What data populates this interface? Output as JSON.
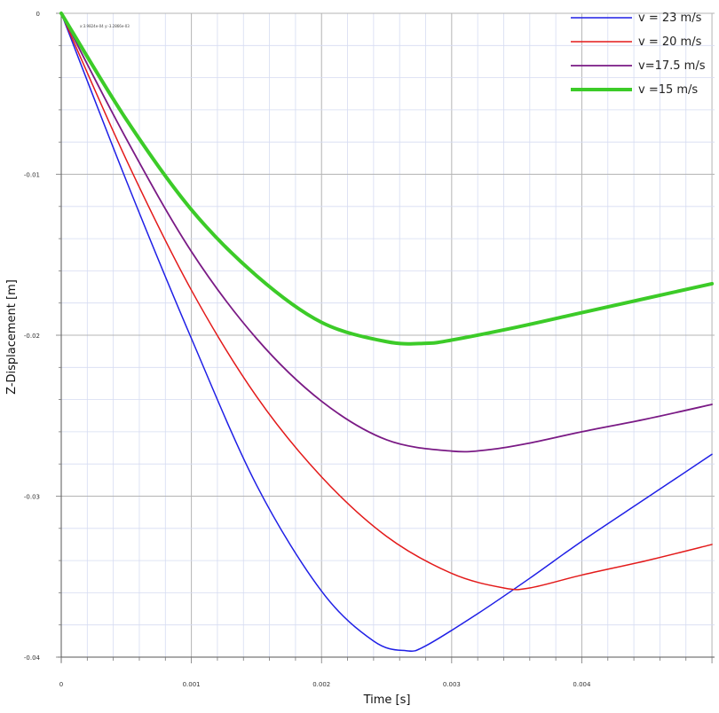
{
  "chart_data": {
    "type": "line",
    "title": "",
    "xlabel": "Time [s]",
    "ylabel": "Z-Displacement [m]",
    "xlim": [
      0,
      0.00502
    ],
    "ylim": [
      -0.04,
      0
    ],
    "x_ticks": [
      {
        "value": 0,
        "label": "0"
      },
      {
        "value": 0.001,
        "label": "0.001"
      },
      {
        "value": 0.002,
        "label": "0.002"
      },
      {
        "value": 0.003,
        "label": "0.003"
      },
      {
        "value": 0.004,
        "label": "0.004"
      }
    ],
    "y_ticks": [
      {
        "value": 0,
        "label": "0"
      },
      {
        "value": -0.01,
        "label": "-0.01"
      },
      {
        "value": -0.02,
        "label": "-0.02"
      },
      {
        "value": -0.03,
        "label": "-0.03"
      },
      {
        "value": -0.04,
        "label": "-0.04"
      }
    ],
    "grid": true,
    "legend_position": "top-right",
    "cursor_readout": "x:3.9824e-04 y:-3.2866e-03",
    "series": [
      {
        "name": "v = 23 m/s",
        "color": "#1f1fe6",
        "width": 1.5,
        "points": [
          [
            0,
            0
          ],
          [
            0.0005,
            -0.0104
          ],
          [
            0.001,
            -0.0202
          ],
          [
            0.0015,
            -0.0293
          ],
          [
            0.002,
            -0.0359
          ],
          [
            0.0024,
            -0.039
          ],
          [
            0.00265,
            -0.0396
          ],
          [
            0.0028,
            -0.0393
          ],
          [
            0.0032,
            -0.0373
          ],
          [
            0.0036,
            -0.0351
          ],
          [
            0.004,
            -0.0328
          ],
          [
            0.0045,
            -0.0301
          ],
          [
            0.005,
            -0.0274
          ]
        ]
      },
      {
        "name": "v = 20 m/s",
        "color": "#e31a1a",
        "width": 1.5,
        "points": [
          [
            0,
            0
          ],
          [
            0.0005,
            -0.0091
          ],
          [
            0.001,
            -0.0172
          ],
          [
            0.0015,
            -0.0238
          ],
          [
            0.002,
            -0.0288
          ],
          [
            0.0025,
            -0.0325
          ],
          [
            0.003,
            -0.0348
          ],
          [
            0.0034,
            -0.0357
          ],
          [
            0.0036,
            -0.0357
          ],
          [
            0.004,
            -0.0349
          ],
          [
            0.0045,
            -0.034
          ],
          [
            0.005,
            -0.033
          ]
        ]
      },
      {
        "name": "v=17.5 m/s",
        "color": "#7a1a85",
        "width": 1.8,
        "points": [
          [
            0,
            0
          ],
          [
            0.0005,
            -0.0078
          ],
          [
            0.001,
            -0.0148
          ],
          [
            0.0015,
            -0.0202
          ],
          [
            0.002,
            -0.0241
          ],
          [
            0.0025,
            -0.0265
          ],
          [
            0.003,
            -0.0272
          ],
          [
            0.0033,
            -0.0271
          ],
          [
            0.0036,
            -0.0267
          ],
          [
            0.004,
            -0.026
          ],
          [
            0.0045,
            -0.0252
          ],
          [
            0.005,
            -0.0243
          ]
        ]
      },
      {
        "name": "v =15 m/s",
        "color": "#3ccb28",
        "width": 4,
        "points": [
          [
            0,
            0
          ],
          [
            0.0005,
            -0.0066
          ],
          [
            0.001,
            -0.0122
          ],
          [
            0.0015,
            -0.0163
          ],
          [
            0.002,
            -0.0192
          ],
          [
            0.0025,
            -0.0204
          ],
          [
            0.0028,
            -0.0205
          ],
          [
            0.003,
            -0.0203
          ],
          [
            0.0035,
            -0.0195
          ],
          [
            0.004,
            -0.0186
          ],
          [
            0.0045,
            -0.0177
          ],
          [
            0.005,
            -0.0168
          ]
        ]
      }
    ]
  }
}
